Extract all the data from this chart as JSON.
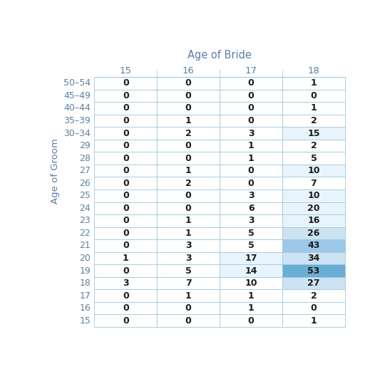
{
  "title": "Age of Bride",
  "ylabel": "Age of Groom",
  "col_labels": [
    "15",
    "16",
    "17",
    "18"
  ],
  "row_labels": [
    "50–54",
    "45–49",
    "40–44",
    "35–39",
    "30–34",
    "29",
    "28",
    "27",
    "26",
    "25",
    "24",
    "23",
    "22",
    "21",
    "20",
    "19",
    "18",
    "17",
    "16",
    "15"
  ],
  "table_data": [
    [
      0,
      0,
      0,
      1
    ],
    [
      0,
      0,
      0,
      0
    ],
    [
      0,
      0,
      0,
      1
    ],
    [
      0,
      1,
      0,
      2
    ],
    [
      0,
      2,
      3,
      15
    ],
    [
      0,
      0,
      1,
      2
    ],
    [
      0,
      0,
      1,
      5
    ],
    [
      0,
      1,
      0,
      10
    ],
    [
      0,
      2,
      0,
      7
    ],
    [
      0,
      0,
      3,
      10
    ],
    [
      0,
      0,
      6,
      20
    ],
    [
      0,
      1,
      3,
      16
    ],
    [
      0,
      1,
      5,
      26
    ],
    [
      0,
      3,
      5,
      43
    ],
    [
      1,
      3,
      17,
      34
    ],
    [
      0,
      5,
      14,
      53
    ],
    [
      3,
      7,
      10,
      27
    ],
    [
      0,
      1,
      1,
      2
    ],
    [
      0,
      0,
      1,
      0
    ],
    [
      0,
      0,
      0,
      1
    ]
  ],
  "bg_color": "#ffffff",
  "title_color": "#5b7fa6",
  "col_header_color": "#5b7fa6",
  "row_label_color": "#5b7fa6",
  "ylabel_color": "#5b7fa6",
  "cell_text_color": "#1c1c1c",
  "border_color": "#a0c8e0",
  "cell_bg_white": "#ffffff",
  "cell_bg_verylight": "#e8f4fb",
  "cell_bg_light": "#cce3f3",
  "cell_bg_medium": "#9dc8e8",
  "cell_bg_strong": "#6aaed6",
  "highlight_map": {
    "col3": {
      "15": "#e8f4fb",
      "10": "#e8f4fb",
      "7": "#ffffff",
      "5": "#ffffff",
      "2": "#ffffff",
      "1": "#ffffff",
      "0": "#ffffff",
      "20": "#cce3f3",
      "16": "#cce3f3",
      "26": "#cce3f3",
      "27": "#cce3f3",
      "34": "#cce3f3",
      "43": "#9dc8e8",
      "53": "#6aaed6"
    }
  }
}
